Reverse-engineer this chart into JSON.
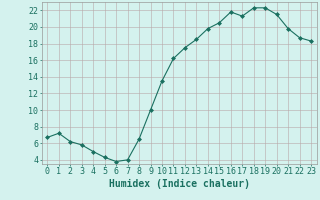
{
  "x": [
    0,
    1,
    2,
    3,
    4,
    5,
    6,
    7,
    8,
    9,
    10,
    11,
    12,
    13,
    14,
    15,
    16,
    17,
    18,
    19,
    20,
    21,
    22,
    23
  ],
  "y": [
    6.7,
    7.2,
    6.2,
    5.8,
    5.0,
    4.3,
    3.8,
    4.0,
    6.5,
    10.0,
    13.5,
    16.2,
    17.5,
    18.5,
    19.8,
    20.5,
    21.8,
    21.3,
    22.3,
    22.3,
    21.5,
    19.8,
    18.7,
    18.3
  ],
  "line_color": "#1a7060",
  "marker": "D",
  "marker_size": 2,
  "bg_color": "#d4f2ee",
  "grid_color": "#b8a8a8",
  "xlabel": "Humidex (Indice chaleur)",
  "xlabel_color": "#1a7060",
  "xlabel_fontsize": 7,
  "tick_fontsize": 6,
  "ylim": [
    3.5,
    23.0
  ],
  "xlim": [
    -0.5,
    23.5
  ],
  "yticks": [
    4,
    6,
    8,
    10,
    12,
    14,
    16,
    18,
    20,
    22
  ],
  "xticks": [
    0,
    1,
    2,
    3,
    4,
    5,
    6,
    7,
    8,
    9,
    10,
    11,
    12,
    13,
    14,
    15,
    16,
    17,
    18,
    19,
    20,
    21,
    22,
    23
  ],
  "figsize": [
    3.2,
    2.0
  ],
  "dpi": 100
}
